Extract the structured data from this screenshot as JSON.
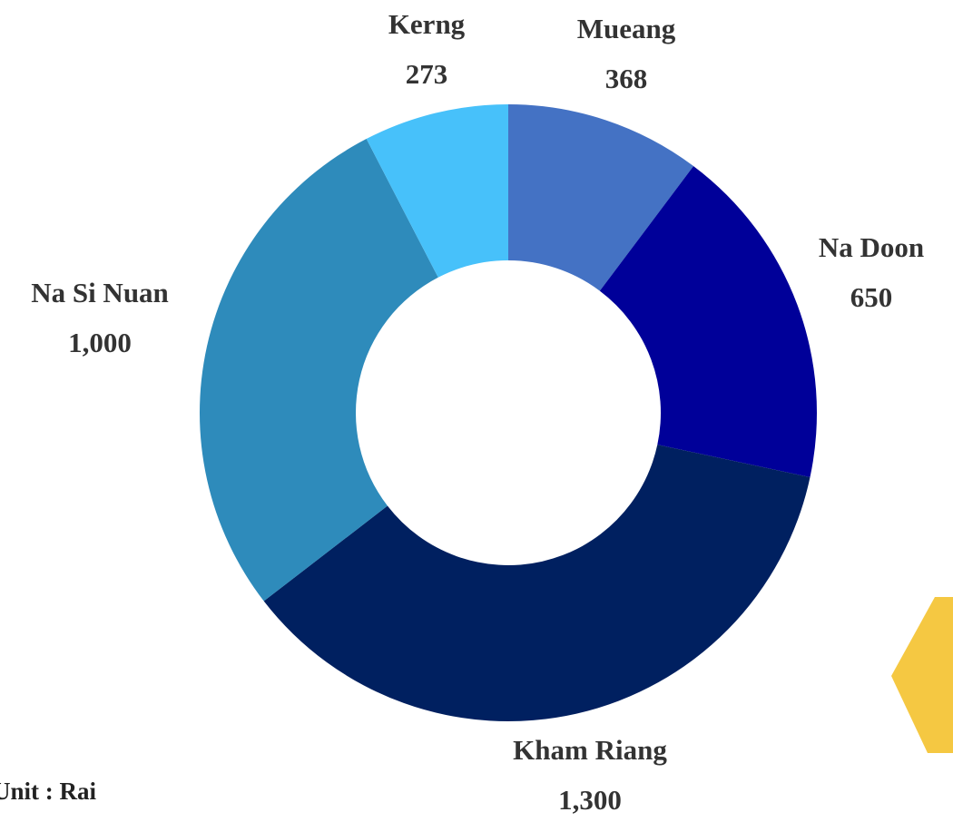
{
  "chart_data": {
    "type": "donut",
    "categories": [
      "Mueang",
      "Na Doon",
      "Kham Riang",
      "Na Si Nuan",
      "Kerng"
    ],
    "values": [
      368,
      650,
      1300,
      1000,
      273
    ],
    "value_labels": [
      "368",
      "650",
      "1,300",
      "1,000",
      "273"
    ],
    "colors": [
      "#4472c4",
      "#000099",
      "#002060",
      "#2e8bbb",
      "#47c1fa"
    ],
    "annotation": "Unit : Rai"
  }
}
